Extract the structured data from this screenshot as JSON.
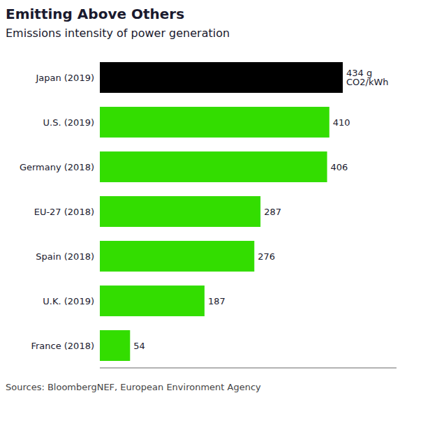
{
  "chart_data": {
    "type": "bar",
    "orientation": "horizontal",
    "title": "Emitting Above Others",
    "subtitle": "Emissions intensity of power generation",
    "annotations": [
      "Sources: BloombergNEF, European Environment Agency"
    ],
    "categories": [
      "Japan (2019)",
      "U.S. (2019)",
      "Germany (2018)",
      "EU-27 (2018)",
      "Spain (2018)",
      "U.K. (2019)",
      "France (2018)"
    ],
    "values": [
      434,
      410,
      406,
      287,
      276,
      187,
      54
    ],
    "value_labels": [
      "434 g CO2/kWh",
      "410",
      "406",
      "287",
      "276",
      "187",
      "54"
    ],
    "data_labels": true,
    "colors": [
      "#000000",
      "#33dd00",
      "#33dd00",
      "#33dd00",
      "#33dd00",
      "#33dd00",
      "#33dd00"
    ],
    "xlim": [
      0,
      530
    ],
    "tick_labels": "y",
    "grid": false
  }
}
